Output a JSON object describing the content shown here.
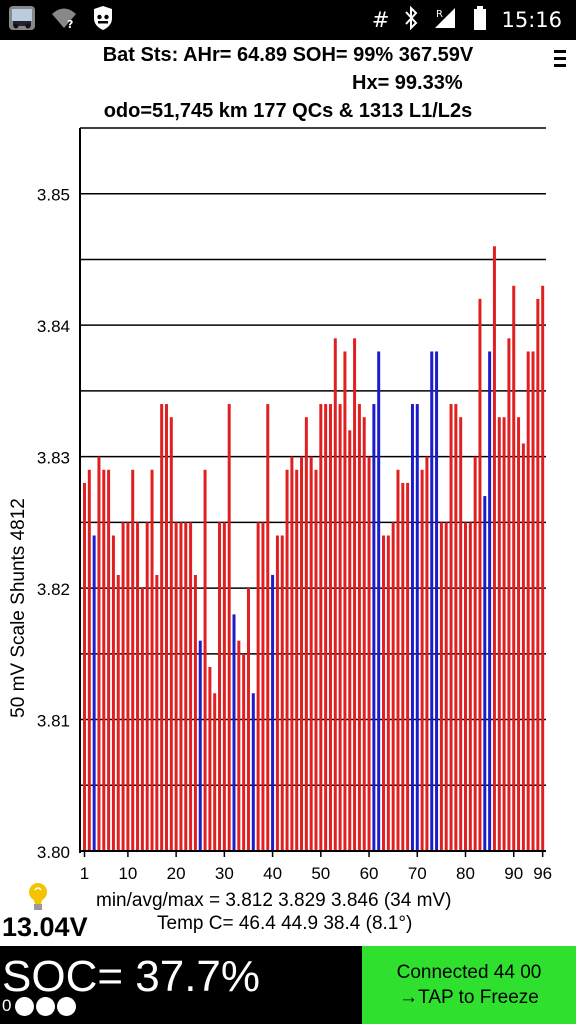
{
  "status_bar": {
    "left_icons": [
      "app-thumbnail-icon",
      "wifi-unknown-icon",
      "shield-app-icon"
    ],
    "right_icons": [
      "hash-icon",
      "bluetooth-icon",
      "signal-roaming-icon",
      "battery-icon"
    ],
    "hash_glyph": "#",
    "roaming_label": "R",
    "time": "15:16"
  },
  "header": {
    "line1": "Bat Sts: AHr= 64.89 SOH= 99% 367.59V",
    "line2": "Hx= 99.33%",
    "line3": "odo=51,745 km  177 QCs  &  1313 L1/L2s"
  },
  "chart_data": {
    "type": "bar",
    "ylabel": "50 mV Scale   Shunts 4812",
    "ylim": [
      3.8,
      3.855
    ],
    "y_ticks": [
      "3.80",
      "3.81",
      "3.82",
      "3.83",
      "3.84",
      "3.85"
    ],
    "x_ticks": [
      "1",
      "10",
      "20",
      "30",
      "40",
      "50",
      "60",
      "70",
      "80",
      "90",
      "96"
    ],
    "grid": true,
    "colors": {
      "normal": "#e02020",
      "shunted": "#1c1ccc"
    },
    "cells": [
      1,
      2,
      3,
      4,
      5,
      6,
      7,
      8,
      9,
      10,
      11,
      12,
      13,
      14,
      15,
      16,
      17,
      18,
      19,
      20,
      21,
      22,
      23,
      24,
      25,
      26,
      27,
      28,
      29,
      30,
      31,
      32,
      33,
      34,
      35,
      36,
      37,
      38,
      39,
      40,
      41,
      42,
      43,
      44,
      45,
      46,
      47,
      48,
      49,
      50,
      51,
      52,
      53,
      54,
      55,
      56,
      57,
      58,
      59,
      60,
      61,
      62,
      63,
      64,
      65,
      66,
      67,
      68,
      69,
      70,
      71,
      72,
      73,
      74,
      75,
      76,
      77,
      78,
      79,
      80,
      81,
      82,
      83,
      84,
      85,
      86,
      87,
      88,
      89,
      90,
      91,
      92,
      93,
      94,
      95,
      96
    ],
    "values": [
      3.828,
      3.829,
      3.824,
      3.83,
      3.829,
      3.829,
      3.824,
      3.821,
      3.825,
      3.825,
      3.829,
      3.825,
      3.82,
      3.825,
      3.829,
      3.821,
      3.834,
      3.834,
      3.833,
      3.825,
      3.825,
      3.825,
      3.825,
      3.821,
      3.816,
      3.829,
      3.814,
      3.812,
      3.825,
      3.825,
      3.834,
      3.818,
      3.816,
      3.815,
      3.82,
      3.812,
      3.825,
      3.825,
      3.834,
      3.821,
      3.824,
      3.824,
      3.829,
      3.83,
      3.829,
      3.83,
      3.833,
      3.83,
      3.829,
      3.834,
      3.834,
      3.834,
      3.839,
      3.834,
      3.838,
      3.832,
      3.839,
      3.834,
      3.833,
      3.83,
      3.834,
      3.838,
      3.824,
      3.824,
      3.825,
      3.829,
      3.828,
      3.828,
      3.834,
      3.834,
      3.829,
      3.83,
      3.838,
      3.838,
      3.825,
      3.825,
      3.834,
      3.834,
      3.833,
      3.825,
      3.825,
      3.83,
      3.842,
      3.827,
      3.838,
      3.846,
      3.833,
      3.833,
      3.839,
      3.843,
      3.833,
      3.831,
      3.838,
      3.838,
      3.842,
      3.843
    ],
    "shunted": [
      0,
      0,
      1,
      0,
      0,
      0,
      0,
      0,
      0,
      0,
      0,
      0,
      0,
      0,
      0,
      0,
      0,
      0,
      0,
      0,
      0,
      0,
      0,
      0,
      1,
      0,
      0,
      0,
      0,
      0,
      0,
      1,
      0,
      0,
      0,
      1,
      0,
      0,
      0,
      1,
      0,
      0,
      0,
      0,
      0,
      0,
      0,
      0,
      0,
      0,
      0,
      0,
      0,
      0,
      0,
      0,
      0,
      0,
      0,
      0,
      1,
      1,
      0,
      0,
      0,
      0,
      0,
      0,
      1,
      1,
      0,
      0,
      1,
      1,
      0,
      0,
      0,
      0,
      0,
      0,
      0,
      0,
      0,
      1,
      1,
      0,
      0,
      0,
      0,
      0,
      0,
      0,
      0,
      0,
      0,
      0
    ]
  },
  "stats": {
    "min_avg_max": "min/avg/max = 3.812 3.829 3.846  (34 mV)",
    "temp": "Temp C= 46.4  44.9  38.4  (8.1°)"
  },
  "voltage": "13.04V",
  "soc": {
    "text": "SOC= 37.7%",
    "zero_label": "0",
    "dots": 3
  },
  "connection": {
    "line1": "Connected 44 00",
    "line2": "→TAP to Freeze"
  }
}
